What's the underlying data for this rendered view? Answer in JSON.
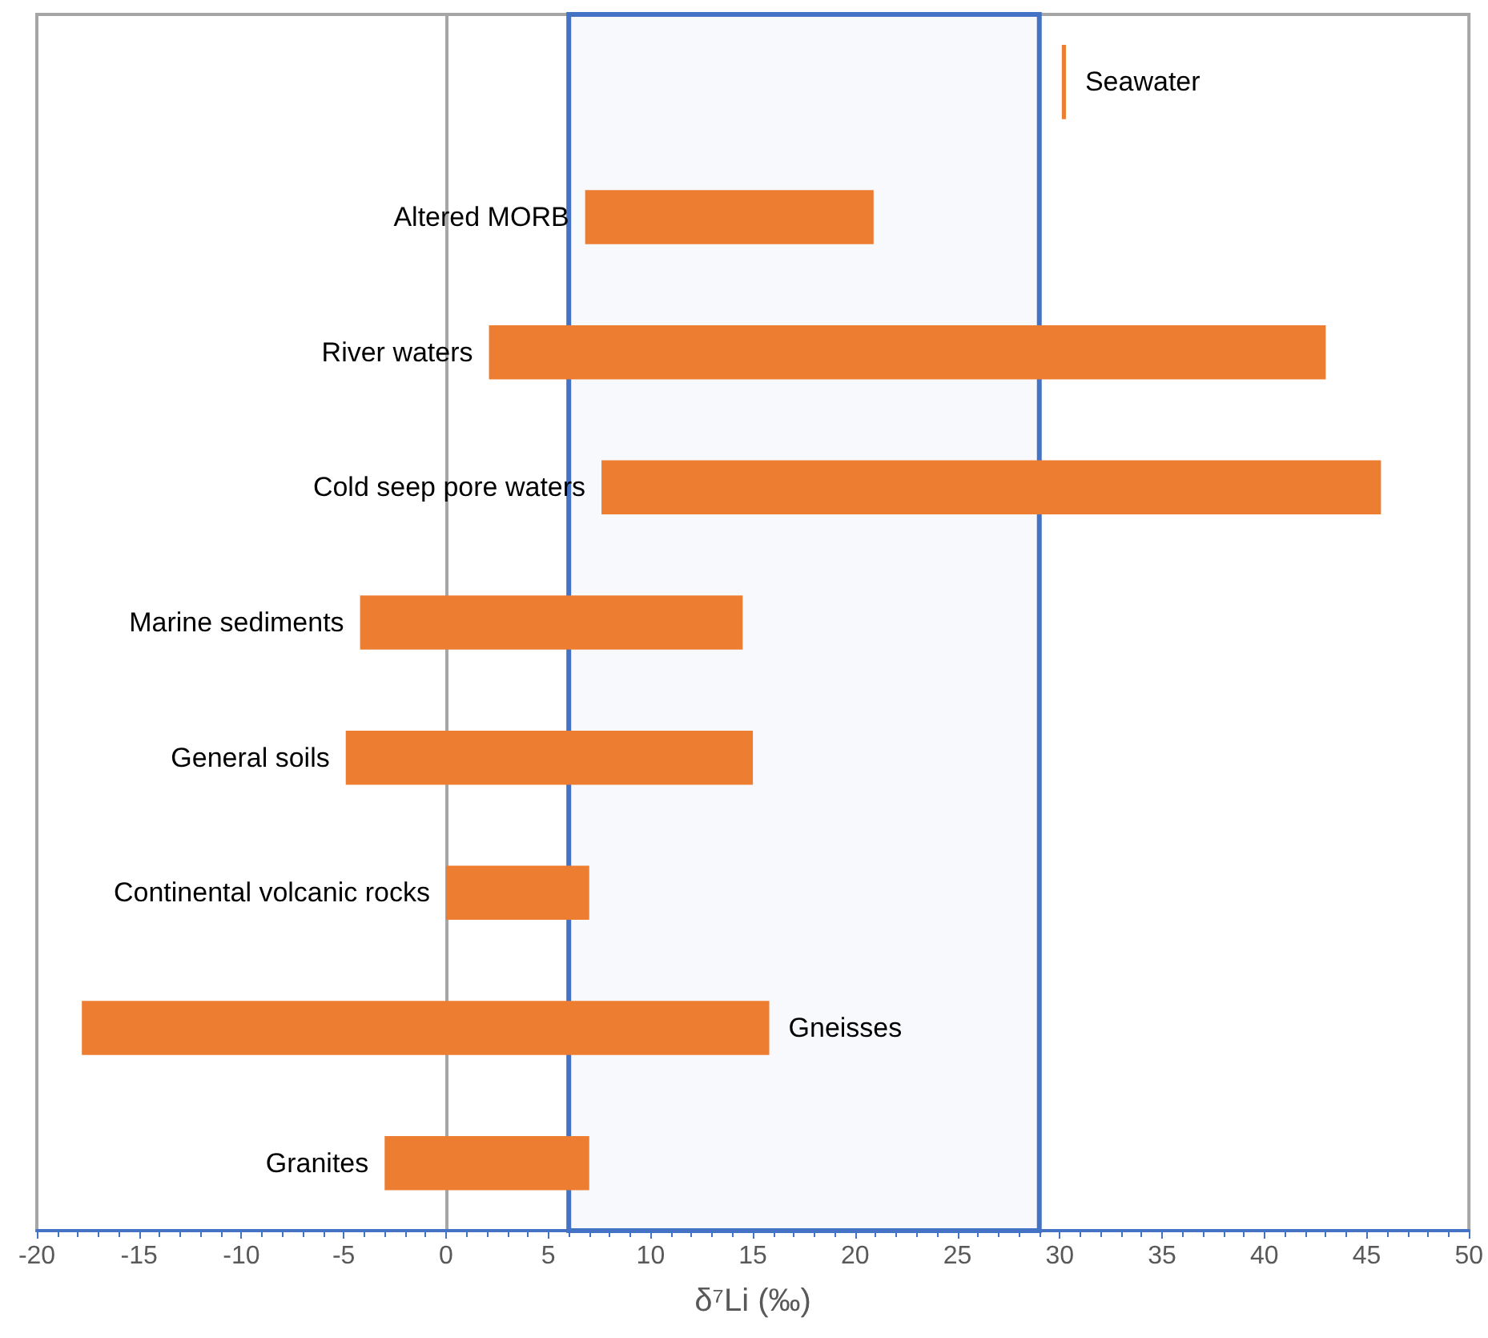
{
  "chart_data": {
    "type": "bar",
    "orientation": "horizontal",
    "xlabel": "δ⁷Li (‰)",
    "categories": [
      "Seawater",
      "Altered MORB",
      "River waters",
      "Cold seep pore waters",
      "Marine sediments",
      "General soils",
      "Continental volcanic rocks",
      "Gneisses",
      "Granites"
    ],
    "base": [
      30.1,
      6.8,
      2.1,
      7.6,
      -4.2,
      -4.9,
      0,
      -17.8,
      -3
    ],
    "values": [
      0.2,
      14.1,
      40.9,
      38.1,
      18.7,
      19.9,
      7,
      33.6,
      10
    ],
    "color": "#ed7d31",
    "xlim": [
      -20,
      50
    ],
    "xticks": [
      -20,
      -15,
      -10,
      -5,
      0,
      5,
      10,
      15,
      20,
      25,
      30,
      35,
      40,
      45,
      50
    ],
    "tick_labels": "x",
    "bands": [
      {
        "axis": "x",
        "from": 6,
        "to": 29,
        "color": "#4472c4"
      }
    ]
  }
}
